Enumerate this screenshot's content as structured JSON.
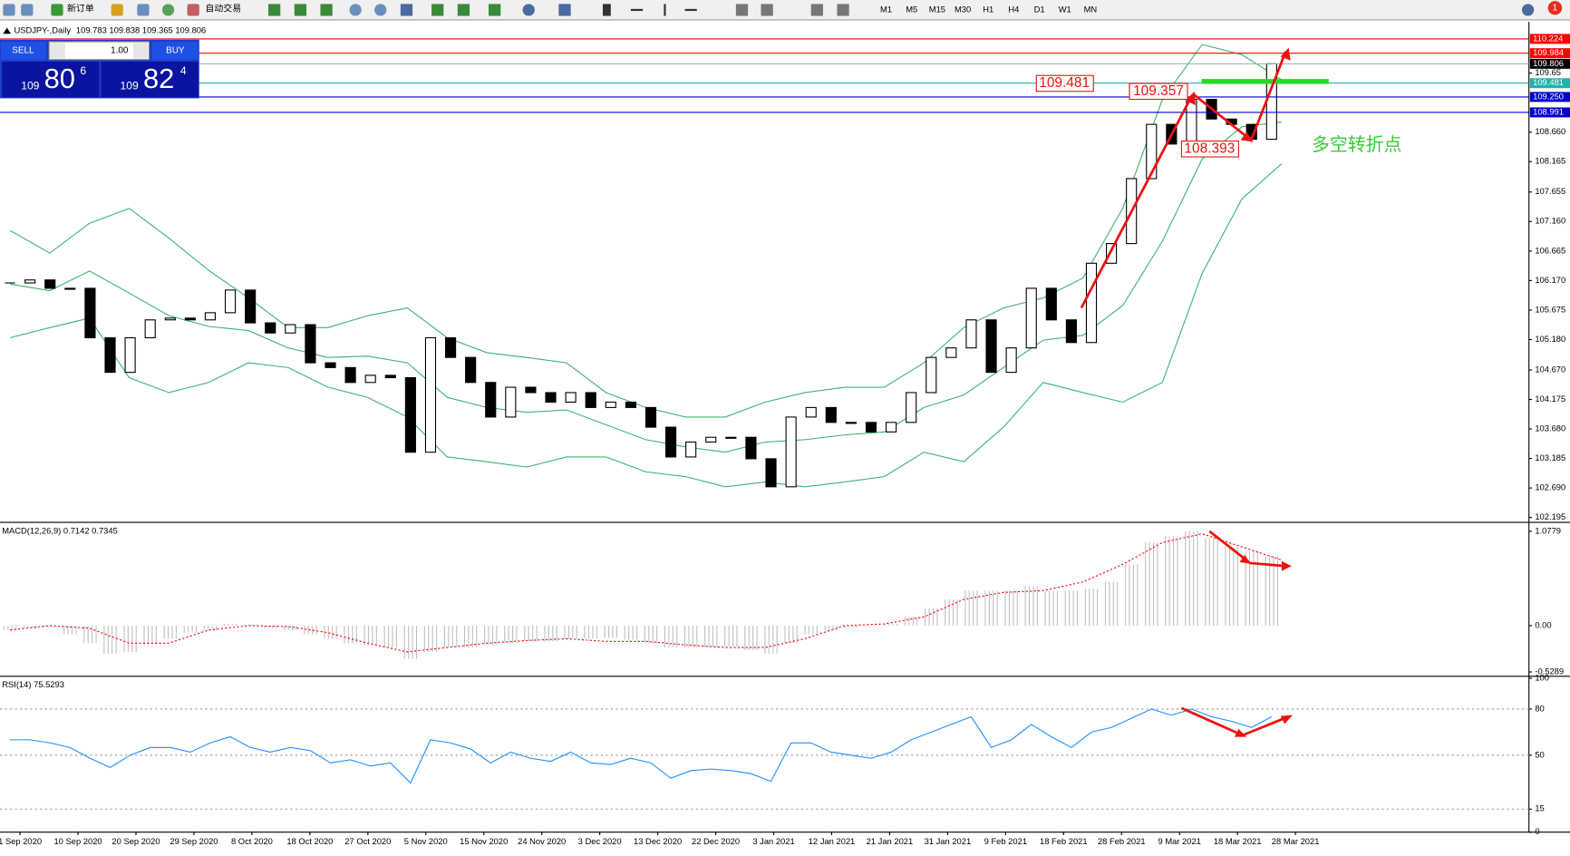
{
  "toolbar": {
    "new_order": "新订单",
    "auto_trade": "自动交易",
    "periods": [
      "M1",
      "M5",
      "M15",
      "M30",
      "H1",
      "H4",
      "D1",
      "W1",
      "MN"
    ],
    "alerts": "1"
  },
  "trade_panel": {
    "sell": "SELL",
    "buy": "BUY",
    "lots": "1.00",
    "sell_price": [
      "109",
      "80",
      "6"
    ],
    "buy_price": [
      "109",
      "82",
      "4"
    ]
  },
  "annotations": {
    "callouts": [
      "109.481",
      "109.357",
      "108.393"
    ],
    "note": "多空转折点"
  },
  "chart_data": [
    {
      "type": "candlestick",
      "title": "USDJPY-,Daily",
      "header": "109.783 109.838 109.365 109.806",
      "values": [
        106.13,
        106.18,
        106.04,
        106.04,
        105.21,
        104.63,
        105.21,
        105.51,
        105.54,
        105.51,
        105.63,
        106.01,
        105.46,
        105.29,
        105.43,
        104.79,
        104.71,
        104.46,
        104.58,
        104.54,
        103.29,
        105.21,
        104.88,
        104.46,
        103.88,
        104.38,
        104.29,
        104.13,
        104.29,
        104.04,
        104.13,
        104.04,
        103.71,
        103.21,
        103.46,
        103.54,
        103.54,
        103.18,
        102.71,
        103.88,
        104.04,
        103.79,
        103.79,
        103.63,
        103.79,
        104.29,
        104.88,
        105.04,
        105.51,
        104.63,
        105.04,
        106.04,
        105.51,
        105.13,
        106.46,
        106.79,
        107.88,
        108.79,
        108.46,
        109.21,
        108.88,
        108.79,
        108.54,
        109.806
      ],
      "bands": {
        "color": "#3cb371",
        "upper": [
          107.01,
          106.63,
          107.13,
          107.38,
          106.88,
          106.34,
          105.88,
          105.38,
          105.38,
          105.58,
          105.71,
          105.21,
          104.96,
          104.88,
          104.79,
          104.29,
          104.04,
          103.88,
          103.88,
          104.13,
          104.29,
          104.38,
          104.38,
          104.79,
          105.38,
          105.71,
          105.88,
          106.21,
          107.38,
          109.21,
          110.13,
          109.96,
          109.54
        ],
        "middle": [
          106.11,
          106.0,
          106.33,
          105.96,
          105.58,
          105.4,
          105.33,
          105.04,
          104.88,
          104.9,
          104.79,
          104.21,
          104.04,
          103.96,
          104.0,
          103.75,
          103.5,
          103.38,
          103.29,
          103.46,
          103.5,
          103.58,
          103.63,
          104.04,
          104.25,
          104.71,
          105.17,
          105.25,
          105.75,
          106.83,
          108.21,
          108.75,
          108.83
        ],
        "lower": [
          105.21,
          105.38,
          105.54,
          104.54,
          104.29,
          104.46,
          104.79,
          104.71,
          104.38,
          104.21,
          103.88,
          103.21,
          103.13,
          103.04,
          103.21,
          103.21,
          102.96,
          102.88,
          102.71,
          102.79,
          102.71,
          102.79,
          102.88,
          103.29,
          103.13,
          103.71,
          104.46,
          104.29,
          104.13,
          104.46,
          106.29,
          107.54,
          108.13
        ]
      },
      "ylim": [
        102.13,
        110.51
      ],
      "yticks": [
        109.65,
        {
          "value": 108.66,
          "label": "108.660"
        },
        108.165,
        107.655,
        {
          "value": 107.16,
          "label": "107.160"
        },
        106.665,
        {
          "value": 106.17,
          "label": "106.170"
        },
        105.675,
        {
          "value": 105.18,
          "label": "105.180"
        },
        {
          "value": 104.67,
          "label": "104.670"
        },
        104.175,
        {
          "value": 103.68,
          "label": "103.680"
        },
        103.185,
        {
          "value": 102.69,
          "label": "102.690"
        },
        102.195
      ],
      "levels": [
        {
          "value": 110.224,
          "color": "#ff0000"
        },
        {
          "value": 109.984,
          "color": "#ff0000"
        },
        {
          "value": 109.481,
          "color": "#20b2aa"
        },
        {
          "value": 109.25,
          "label": "109.250",
          "color": "#0000cd"
        },
        {
          "value": 108.991,
          "color": "#0000cd"
        }
      ],
      "bid": 109.806,
      "date_labels": [
        "1 Sep 2020",
        "10 Sep 2020",
        "20 Sep 2020",
        "29 Sep 2020",
        "8 Oct 2020",
        "18 Oct 2020",
        "27 Oct 2020",
        "5 Nov 2020",
        "15 Nov 2020",
        "24 Nov 2020",
        "3 Dec 2020",
        "13 Dec 2020",
        "22 Dec 2020",
        "3 Jan 2021",
        "12 Jan 2021",
        "21 Jan 2021",
        "31 Jan 2021",
        "9 Feb 2021",
        "18 Feb 2021",
        "28 Feb 2021",
        "9 Mar 2021",
        "18 Mar 2021",
        "28 Mar 2021"
      ]
    },
    {
      "type": "macd",
      "title": "MACD(12,26,9) 0.7142 0.7345",
      "color": "#c0c0c0",
      "signal_color": "#ff0000",
      "histogram": [
        -0.05,
        -0.03,
        -0.02,
        -0.1,
        -0.2,
        -0.32,
        -0.3,
        -0.22,
        -0.15,
        -0.08,
        -0.05,
        0.02,
        0.01,
        -0.03,
        -0.05,
        -0.1,
        -0.15,
        -0.2,
        -0.22,
        -0.25,
        -0.38,
        -0.3,
        -0.25,
        -0.25,
        -0.22,
        -0.2,
        -0.18,
        -0.18,
        -0.15,
        -0.15,
        -0.14,
        -0.16,
        -0.2,
        -0.25,
        -0.25,
        -0.25,
        -0.24,
        -0.28,
        -0.32,
        -0.2,
        -0.1,
        -0.05,
        -0.02,
        0.0,
        0.02,
        0.1,
        0.2,
        0.3,
        0.4,
        0.4,
        0.4,
        0.45,
        0.4,
        0.4,
        0.42,
        0.5,
        0.7,
        0.95,
        1.02,
        1.08,
        1.0,
        0.9,
        0.85,
        0.8
      ],
      "signal": [
        -0.05,
        0.0,
        -0.03,
        -0.2,
        -0.2,
        -0.05,
        0.0,
        -0.01,
        -0.08,
        -0.2,
        -0.3,
        -0.25,
        -0.2,
        -0.17,
        -0.15,
        -0.18,
        -0.18,
        -0.22,
        -0.25,
        -0.25,
        -0.15,
        0.0,
        0.02,
        0.1,
        0.3,
        0.38,
        0.4,
        0.5,
        0.7,
        0.95,
        1.05,
        0.9,
        0.75
      ],
      "ylim": [
        -0.567,
        1.158
      ],
      "yticks": [
        1.0779,
        {
          "value": 0,
          "label": "0.00"
        },
        -0.5289
      ]
    },
    {
      "type": "rsi",
      "title": "RSI(14) 75.5293",
      "color": "#1e90ff",
      "values": [
        60,
        60,
        58,
        55,
        48,
        42,
        50,
        55,
        55,
        52,
        58,
        62,
        55,
        52,
        55,
        53,
        45,
        47,
        43,
        45,
        32,
        60,
        58,
        54,
        45,
        52,
        48,
        46,
        52,
        45,
        44,
        48,
        45,
        35,
        40,
        41,
        40,
        38,
        33,
        58,
        58,
        52,
        50,
        48,
        52,
        60,
        65,
        70,
        75,
        55,
        60,
        70,
        62,
        55,
        65,
        68,
        74,
        80,
        76,
        80,
        75,
        72,
        68,
        75
      ],
      "ylim": [
        0,
        100
      ],
      "yticks": [
        100,
        80,
        50,
        15,
        0
      ]
    }
  ]
}
